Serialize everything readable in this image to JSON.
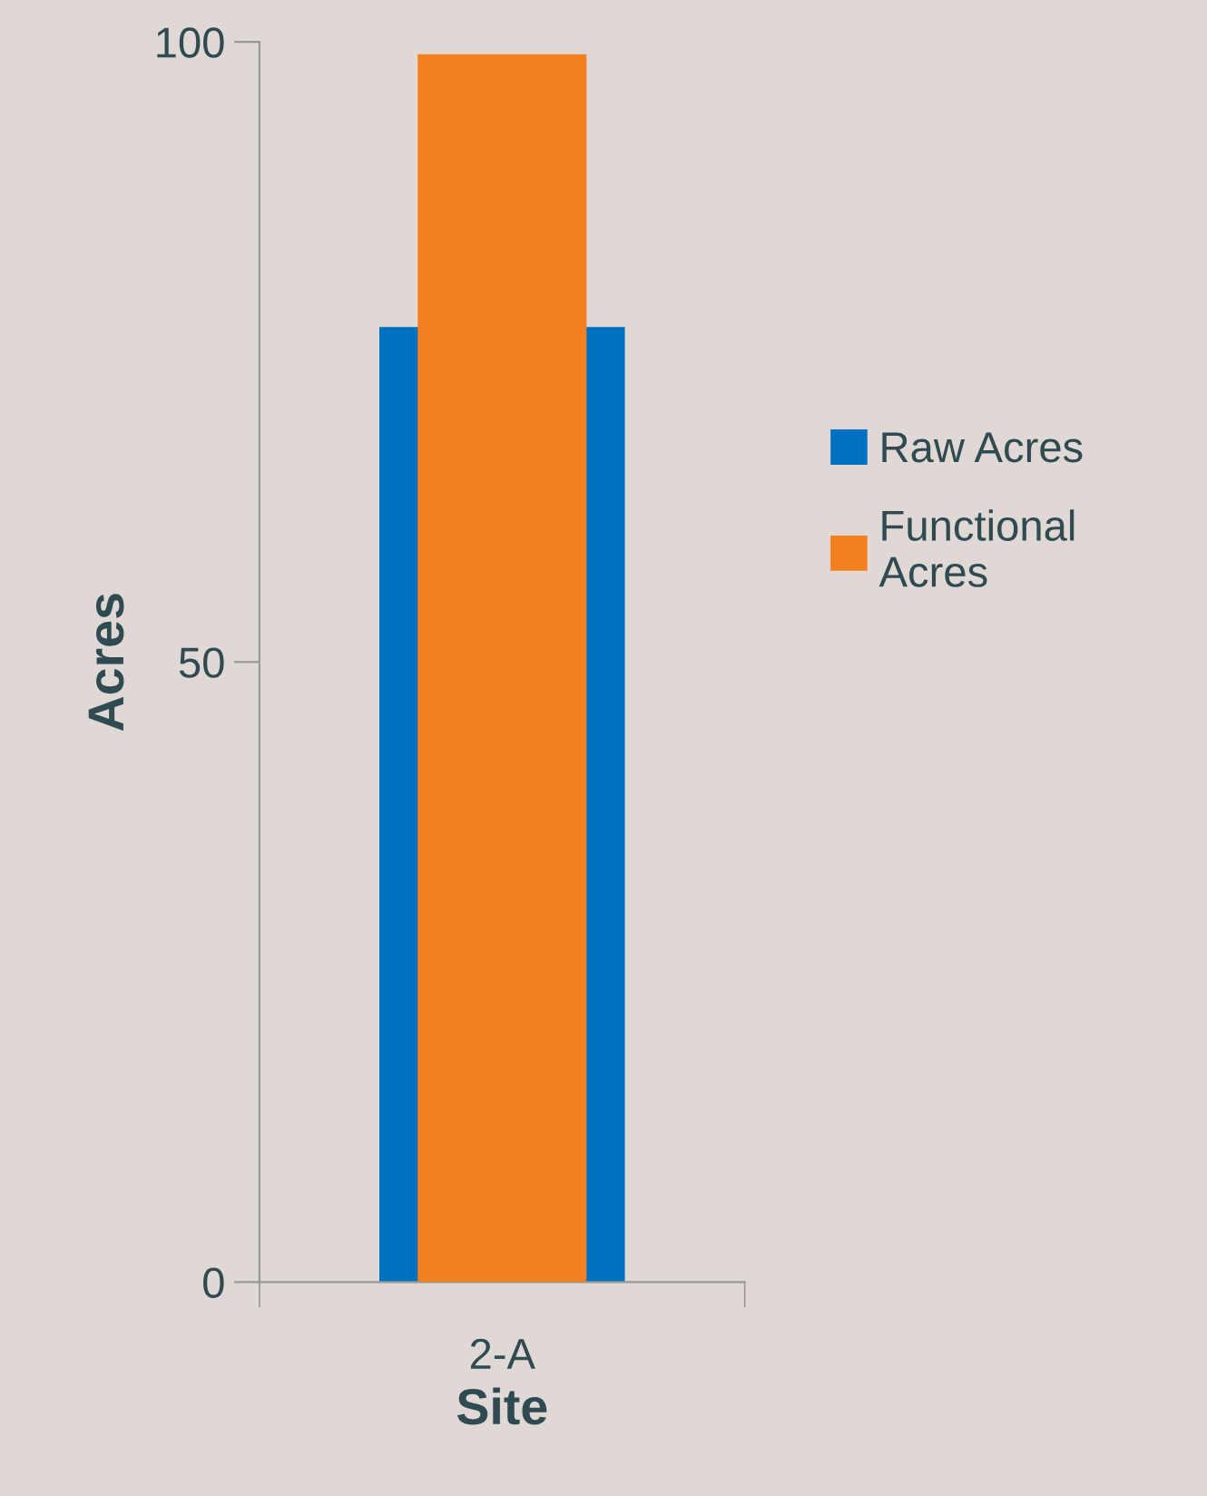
{
  "chart_data": {
    "type": "bar",
    "xlabel": "Site",
    "ylabel": "Acres",
    "categories": [
      "2-A"
    ],
    "series": [
      {
        "name": "Raw Acres",
        "color": "#0070c0",
        "values": [
          77
        ]
      },
      {
        "name": "Functional Acres",
        "color": "#f47f1f",
        "values": [
          99
        ]
      }
    ],
    "ylim": [
      0,
      100
    ],
    "yticks": [
      0,
      50,
      100
    ],
    "grid": false,
    "legend": "right"
  }
}
